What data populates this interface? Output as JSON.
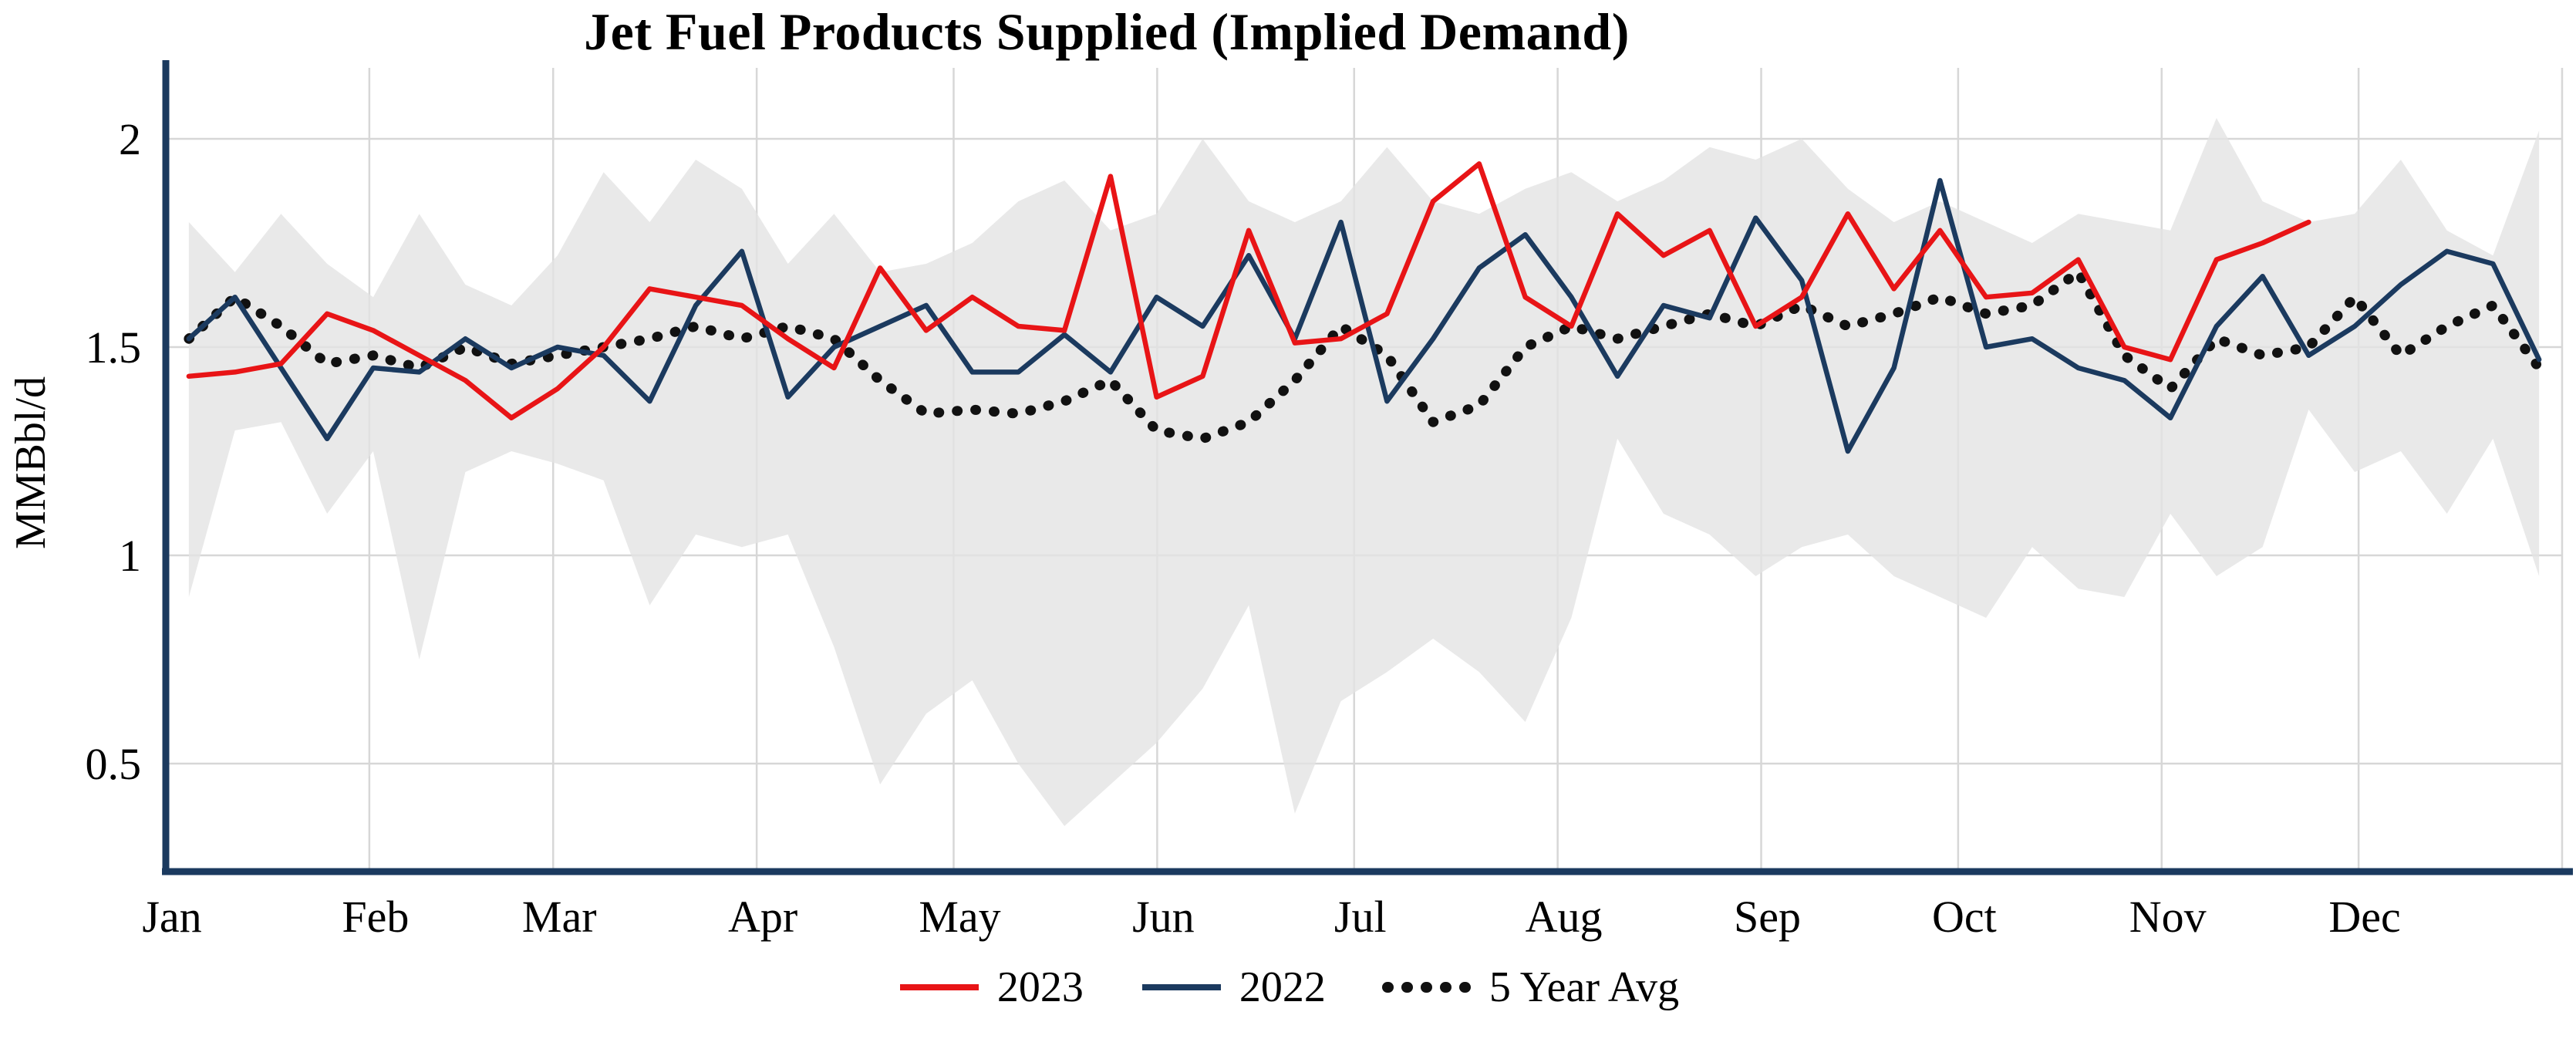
{
  "chart_data": {
    "type": "line",
    "title": "Jet Fuel Products Supplied (Implied Demand)",
    "ylabel": "MMBbl/d",
    "xlabel": "",
    "frequency": "weekly",
    "weeks_per_year": 52,
    "grid": true,
    "legend_position": "bottom-center",
    "x_axis": {
      "tick_labels": [
        "Jan",
        "Feb",
        "Mar",
        "Apr",
        "May",
        "Jun",
        "Jul",
        "Aug",
        "Sep",
        "Oct",
        "Nov",
        "Dec"
      ],
      "month_start_days": [
        0,
        31,
        59,
        90,
        120,
        151,
        181,
        212,
        243,
        273,
        304,
        334
      ]
    },
    "y_axis": {
      "ticks": [
        0.5,
        1,
        1.5,
        2
      ],
      "tick_labels": [
        "0.5",
        "1",
        "1.5",
        "2"
      ],
      "range_shown": [
        0.25,
        2.15
      ]
    },
    "colors": {
      "axis": "#1b3a5f",
      "grid": "#d7d7d7",
      "text": "#000000",
      "background": "#ffffff"
    },
    "band": {
      "name": "5-year range",
      "fill": "#e4e4e4",
      "upper": [
        1.8,
        1.68,
        1.82,
        1.7,
        1.62,
        1.82,
        1.65,
        1.6,
        1.72,
        1.92,
        1.8,
        1.95,
        1.88,
        1.7,
        1.82,
        1.68,
        1.7,
        1.75,
        1.85,
        1.9,
        1.78,
        1.82,
        2.0,
        1.85,
        1.8,
        1.85,
        1.98,
        1.85,
        1.82,
        1.88,
        1.92,
        1.85,
        1.9,
        1.98,
        1.95,
        2.0,
        1.88,
        1.8,
        1.85,
        1.8,
        1.75,
        1.82,
        1.8,
        1.78,
        2.05,
        1.85,
        1.8,
        1.82,
        1.95,
        1.78,
        1.72,
        2.02
      ],
      "lower": [
        0.9,
        1.3,
        1.32,
        1.1,
        1.25,
        0.75,
        1.2,
        1.25,
        1.22,
        1.18,
        0.88,
        1.05,
        1.02,
        1.05,
        0.78,
        0.45,
        0.62,
        0.7,
        0.5,
        0.35,
        0.45,
        0.55,
        0.68,
        0.88,
        0.38,
        0.65,
        0.72,
        0.8,
        0.72,
        0.6,
        0.85,
        1.28,
        1.1,
        1.05,
        0.95,
        1.02,
        1.05,
        0.95,
        0.9,
        0.85,
        1.02,
        0.92,
        0.9,
        1.1,
        0.95,
        1.02,
        1.35,
        1.2,
        1.25,
        1.1,
        1.28,
        0.95
      ]
    },
    "series": [
      {
        "name": "2023",
        "color": "#e81416",
        "style": "solid",
        "values": [
          1.43,
          1.44,
          1.46,
          1.58,
          1.54,
          1.48,
          1.42,
          1.33,
          1.4,
          1.5,
          1.64,
          1.62,
          1.6,
          1.52,
          1.45,
          1.69,
          1.54,
          1.62,
          1.55,
          1.54,
          1.91,
          1.38,
          1.43,
          1.78,
          1.51,
          1.52,
          1.58,
          1.85,
          1.94,
          1.62,
          1.55,
          1.82,
          1.72,
          1.78,
          1.55,
          1.62,
          1.82,
          1.64,
          1.78,
          1.62,
          1.63,
          1.71,
          1.5,
          1.47,
          1.71,
          1.75,
          1.8
        ]
      },
      {
        "name": "2022",
        "color": "#1b3a5f",
        "style": "solid",
        "values": [
          1.52,
          1.62,
          1.45,
          1.28,
          1.45,
          1.44,
          1.52,
          1.45,
          1.5,
          1.48,
          1.37,
          1.6,
          1.73,
          1.38,
          1.5,
          1.55,
          1.6,
          1.44,
          1.44,
          1.53,
          1.44,
          1.62,
          1.55,
          1.72,
          1.52,
          1.8,
          1.37,
          1.52,
          1.69,
          1.77,
          1.62,
          1.43,
          1.6,
          1.57,
          1.81,
          1.66,
          1.25,
          1.45,
          1.9,
          1.5,
          1.52,
          1.45,
          1.42,
          1.33,
          1.55,
          1.67,
          1.48,
          1.55,
          1.65,
          1.73,
          1.7,
          1.47
        ]
      },
      {
        "name": "5 Year Avg",
        "color": "#111111",
        "style": "dotted",
        "values": [
          1.52,
          1.62,
          1.55,
          1.46,
          1.48,
          1.45,
          1.5,
          1.46,
          1.48,
          1.5,
          1.52,
          1.55,
          1.52,
          1.55,
          1.52,
          1.42,
          1.34,
          1.35,
          1.34,
          1.37,
          1.42,
          1.3,
          1.28,
          1.32,
          1.42,
          1.55,
          1.48,
          1.32,
          1.36,
          1.5,
          1.55,
          1.52,
          1.55,
          1.58,
          1.55,
          1.6,
          1.55,
          1.58,
          1.62,
          1.58,
          1.6,
          1.68,
          1.48,
          1.4,
          1.52,
          1.48,
          1.5,
          1.62,
          1.48,
          1.55,
          1.6,
          1.45
        ]
      }
    ]
  }
}
